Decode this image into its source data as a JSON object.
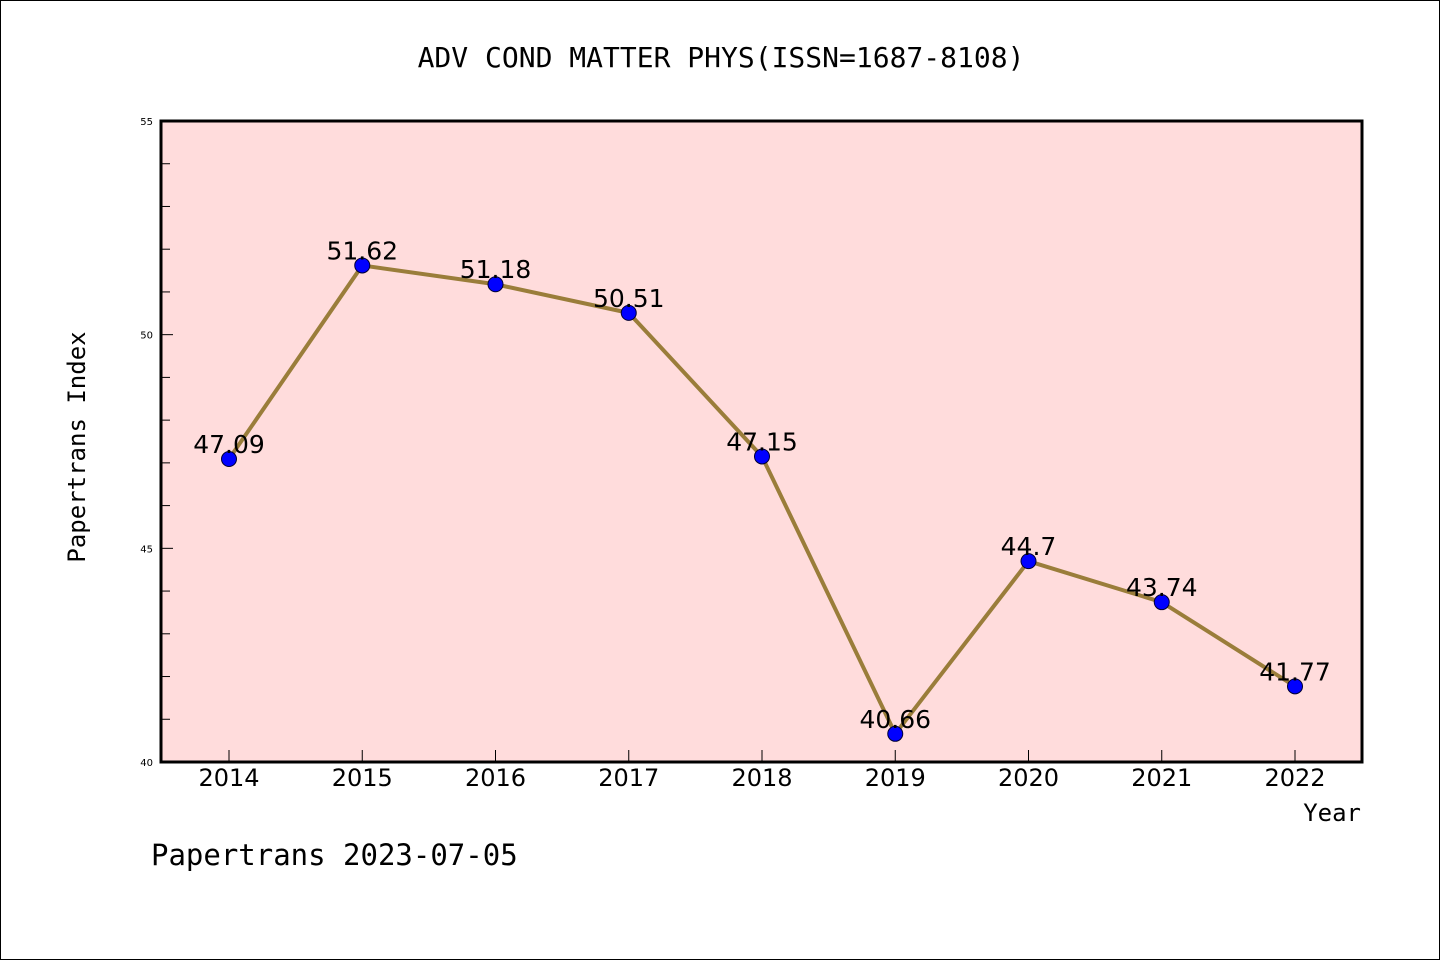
{
  "chart_data": {
    "type": "line",
    "title": "ADV COND MATTER PHYS(ISSN=1687-8108)",
    "xlabel": "Year",
    "ylabel": "Papertrans Index",
    "categories": [
      "2014",
      "2015",
      "2016",
      "2017",
      "2018",
      "2019",
      "2020",
      "2021",
      "2022"
    ],
    "series": [
      {
        "values": [
          47.09,
          51.62,
          51.18,
          50.51,
          47.15,
          40.66,
          44.7,
          43.74,
          41.77
        ]
      }
    ],
    "data_labels": [
      "47.09",
      "51.62",
      "51.18",
      "50.51",
      "47.15",
      "40.66",
      "44.7",
      "43.74",
      "41.77"
    ],
    "y_ticks": [
      "40",
      "45",
      "50",
      "55"
    ],
    "ylim": [
      40,
      55
    ],
    "y_minor_step": 1,
    "grid": false,
    "legend": "none",
    "footer": "Papertrans 2023-07-05",
    "colors": {
      "plot_background": "#ffdcdc",
      "line": "#9a7d3a",
      "marker": "#0000ff",
      "axes": "#000000"
    }
  }
}
